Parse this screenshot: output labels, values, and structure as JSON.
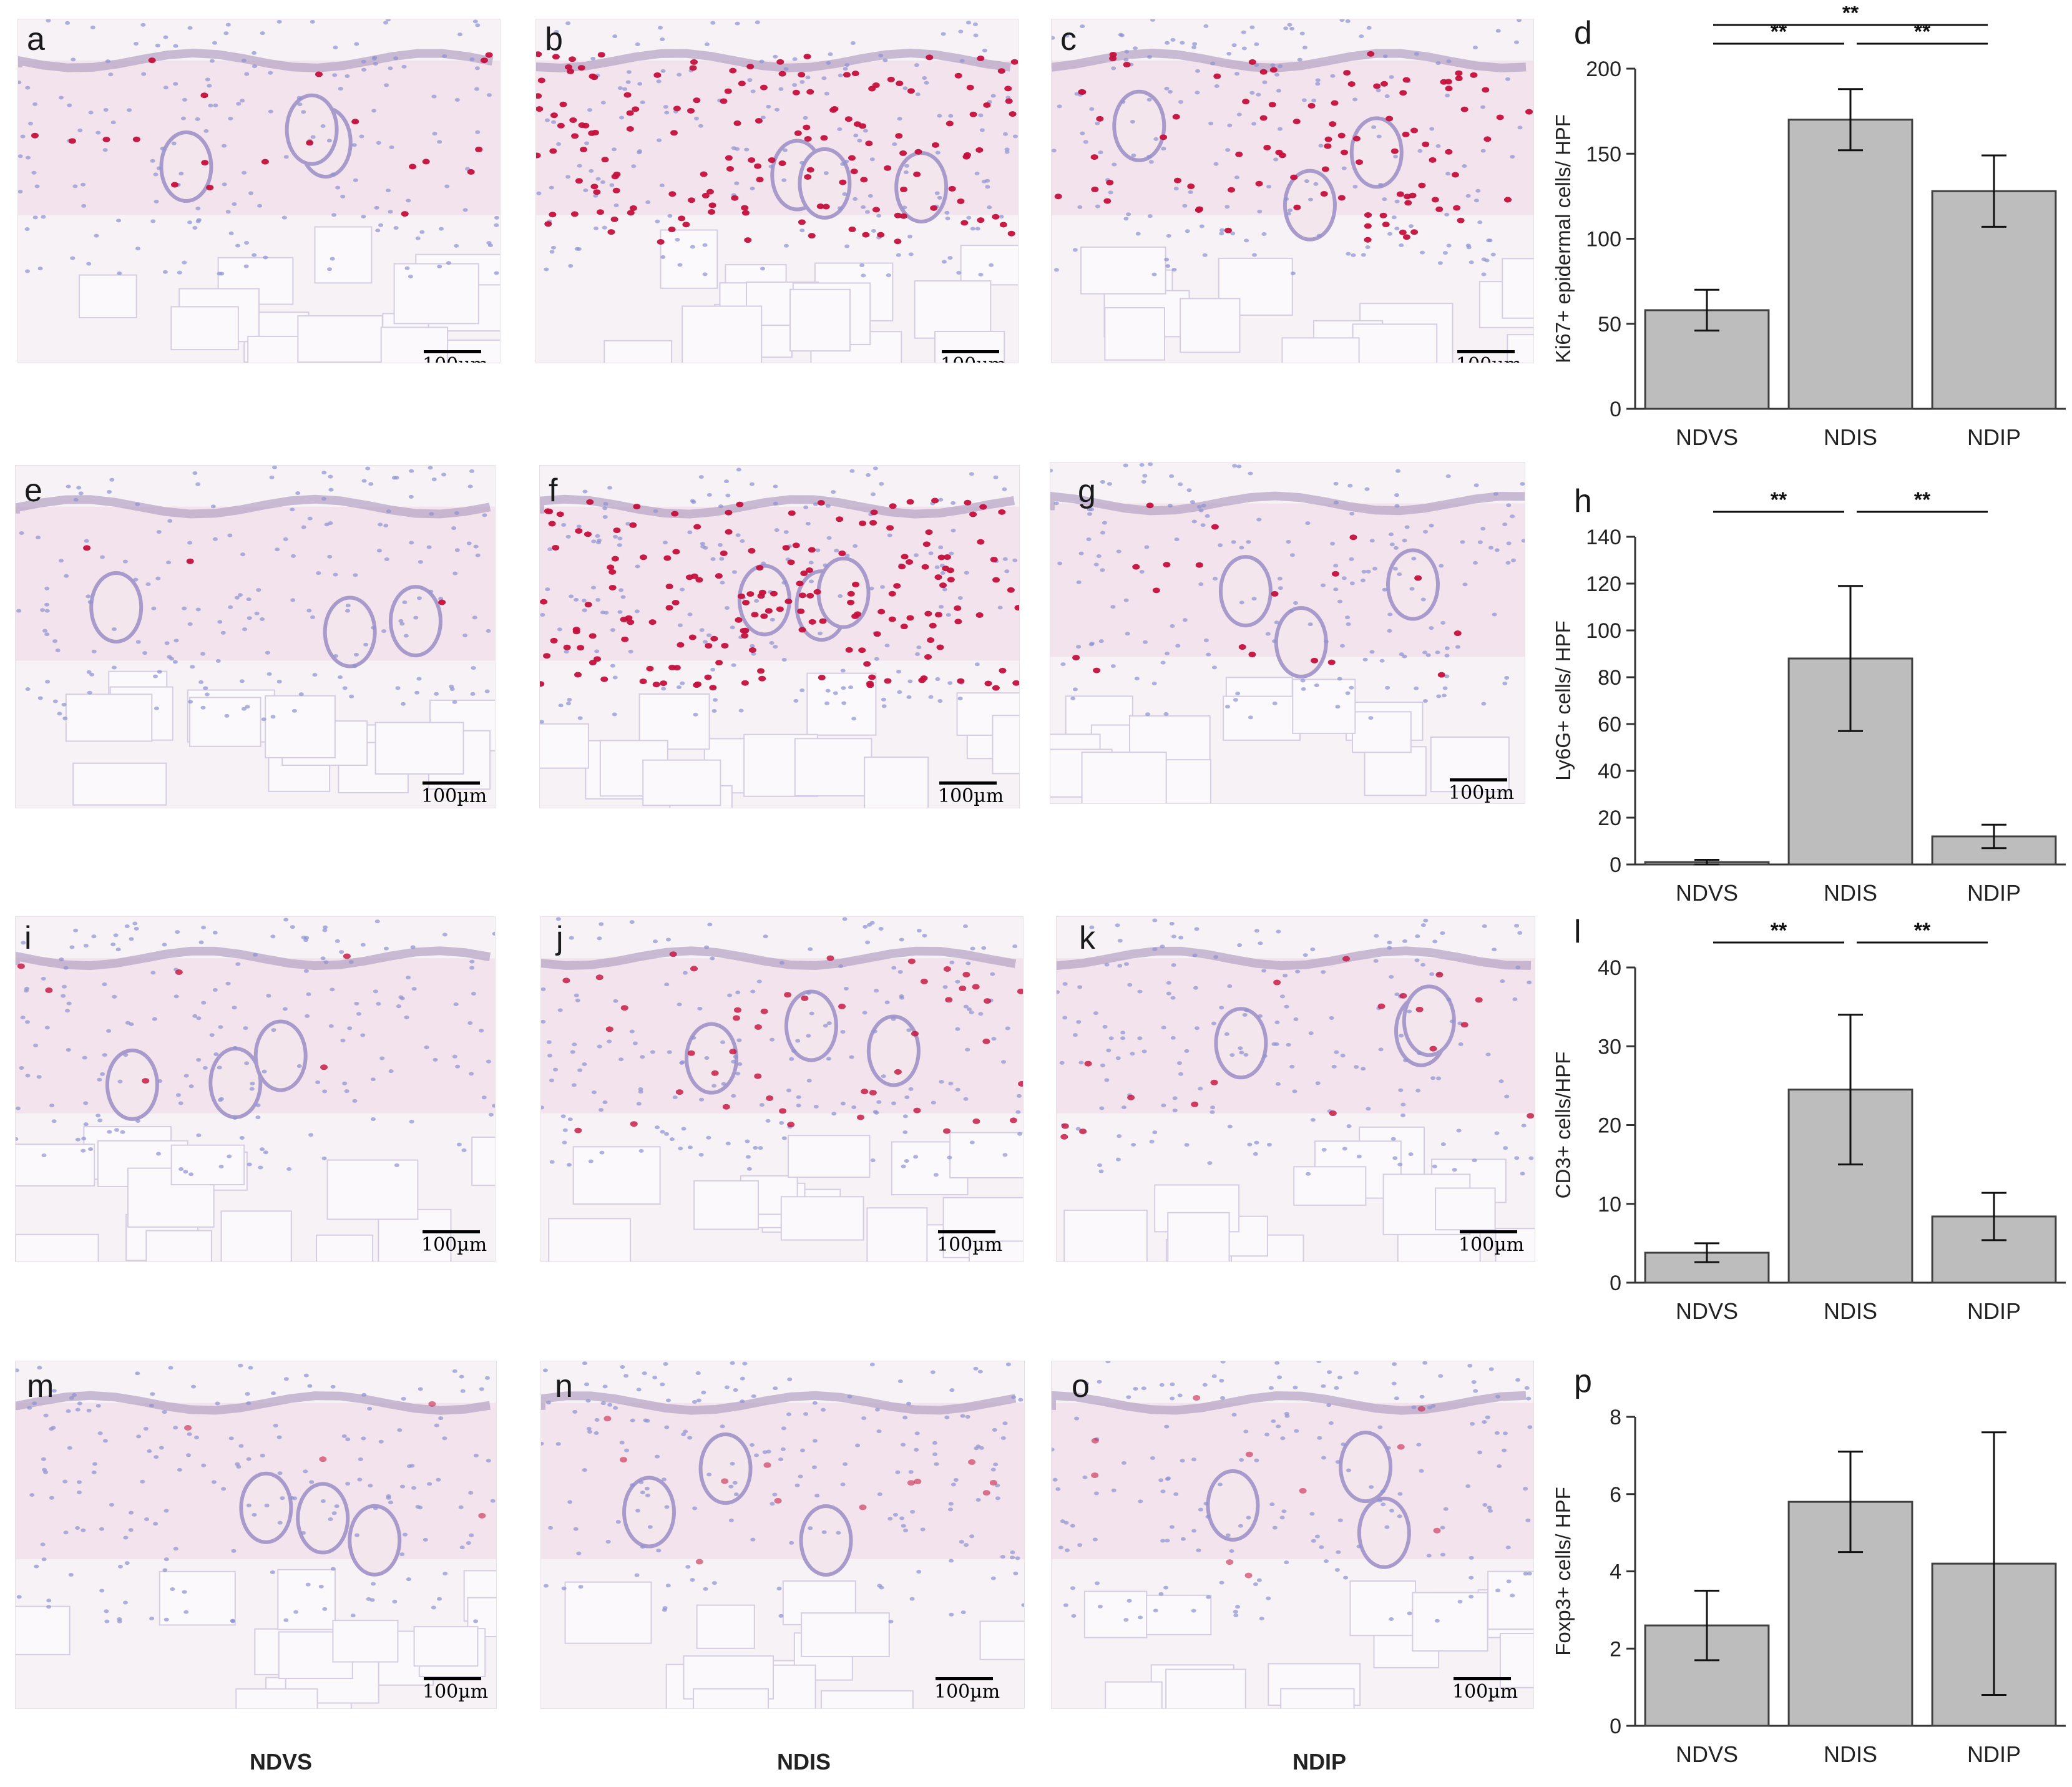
{
  "figure": {
    "column_captions": [
      "NDVS",
      "NDIS",
      "NDIP"
    ],
    "scale_label": "100µm",
    "micrographs": [
      {
        "letter": "a",
        "marker": "Ki67",
        "group": "NDVS",
        "density": 20,
        "nuclei": "intense"
      },
      {
        "letter": "b",
        "marker": "Ki67",
        "group": "NDIS",
        "density": 150,
        "nuclei": "intense"
      },
      {
        "letter": "c",
        "marker": "Ki67",
        "group": "NDIP",
        "density": 90,
        "nuclei": "intense"
      },
      {
        "letter": "e",
        "marker": "Ly6G",
        "group": "NDVS",
        "density": 3,
        "nuclei": "intense"
      },
      {
        "letter": "f",
        "marker": "Ly6G",
        "group": "NDIS",
        "density": 170,
        "nuclei": "intense"
      },
      {
        "letter": "g",
        "marker": "Ly6G",
        "group": "NDIP",
        "density": 18,
        "nuclei": "intense"
      },
      {
        "letter": "i",
        "marker": "CD3",
        "group": "NDVS",
        "density": 6,
        "nuclei": "moderate"
      },
      {
        "letter": "j",
        "marker": "CD3",
        "group": "NDIS",
        "density": 45,
        "nuclei": "moderate"
      },
      {
        "letter": "k",
        "marker": "CD3",
        "group": "NDIP",
        "density": 18,
        "nuclei": "moderate"
      },
      {
        "letter": "m",
        "marker": "Foxp3",
        "group": "NDVS",
        "density": 4,
        "nuclei": "faint"
      },
      {
        "letter": "n",
        "marker": "Foxp3",
        "group": "NDIS",
        "density": 12,
        "nuclei": "faint"
      },
      {
        "letter": "o",
        "marker": "Foxp3",
        "group": "NDIP",
        "density": 10,
        "nuclei": "faint"
      }
    ]
  },
  "colors": {
    "bar_fill": "#bdbdbd",
    "bar_stroke": "#404040",
    "stain_red": "#c4103c",
    "hematoxylin_blue": "#8d92d0",
    "tissue_pink": "#f1e1ea"
  },
  "chart_data": [
    {
      "panel": "d",
      "type": "bar",
      "categories": [
        "NDVS",
        "NDIS",
        "NDIP"
      ],
      "values": [
        58,
        170,
        128
      ],
      "error": [
        12,
        18,
        21
      ],
      "ylabel": "Ki67+ epidermal cells/ HPF",
      "ylim": [
        0,
        200
      ],
      "yticks": [
        0,
        50,
        100,
        150,
        200
      ],
      "significance": [
        {
          "from": 0,
          "to": 1,
          "label": "**"
        },
        {
          "from": 1,
          "to": 2,
          "label": "**"
        },
        {
          "from": 0,
          "to": 2,
          "label": "**"
        }
      ]
    },
    {
      "panel": "h",
      "type": "bar",
      "categories": [
        "NDVS",
        "NDIS",
        "NDIP"
      ],
      "values": [
        1,
        88,
        12
      ],
      "error": [
        1,
        31,
        5
      ],
      "ylabel": "Ly6G+ cells/ HPF",
      "ylim": [
        0,
        140
      ],
      "yticks": [
        0,
        20,
        40,
        60,
        80,
        100,
        120,
        140
      ],
      "significance": [
        {
          "from": 0,
          "to": 1,
          "label": "**"
        },
        {
          "from": 1,
          "to": 2,
          "label": "**"
        }
      ]
    },
    {
      "panel": "l",
      "type": "bar",
      "categories": [
        "NDVS",
        "NDIS",
        "NDIP"
      ],
      "values": [
        3.8,
        24.5,
        8.4
      ],
      "error": [
        1.2,
        9.5,
        3
      ],
      "ylabel": "CD3+ cells/HPF",
      "ylim": [
        0,
        40
      ],
      "yticks": [
        0,
        10,
        20,
        30,
        40
      ],
      "significance": [
        {
          "from": 0,
          "to": 1,
          "label": "**"
        },
        {
          "from": 1,
          "to": 2,
          "label": "**"
        }
      ]
    },
    {
      "panel": "p",
      "type": "bar",
      "categories": [
        "NDVS",
        "NDIS",
        "NDIP"
      ],
      "values": [
        2.6,
        5.8,
        4.2
      ],
      "error": [
        0.9,
        1.3,
        3.4
      ],
      "ylabel": "Foxp3+ cells/ HPF",
      "ylim": [
        0,
        8
      ],
      "yticks": [
        0,
        2,
        4,
        6,
        8
      ],
      "significance": []
    }
  ]
}
